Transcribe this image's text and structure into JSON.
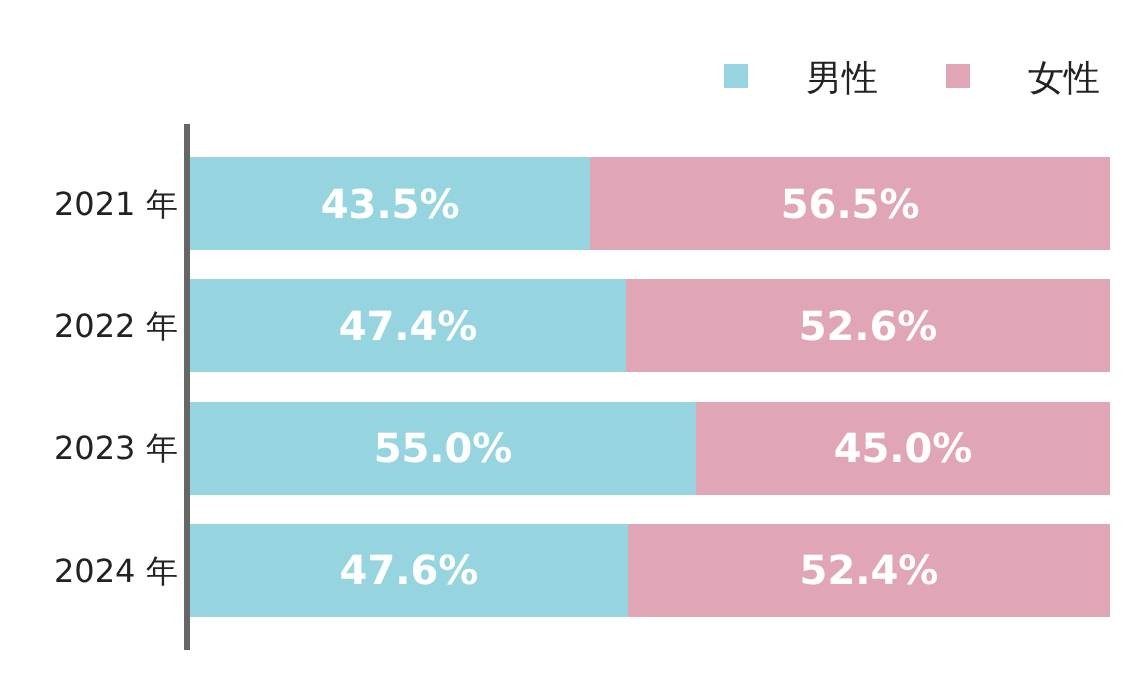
{
  "chart_data": {
    "type": "bar",
    "orientation": "horizontal",
    "stacked": true,
    "legend": "top right",
    "tick_labels": "y",
    "xlim": [
      0,
      100
    ],
    "categories": [
      "2021 年",
      "2022 年",
      "2023 年",
      "2024 年"
    ],
    "series": [
      {
        "name": "男性",
        "color": "#96d5e0",
        "values": [
          43.5,
          47.4,
          55.0,
          47.6
        ],
        "value_labels": [
          "43.5%",
          "47.4%",
          "55.0%",
          "47.6%"
        ]
      },
      {
        "name": "女性",
        "color": "#e0a6b5",
        "values": [
          56.5,
          52.6,
          45.0,
          52.4
        ],
        "value_labels": [
          "56.5%",
          "52.6%",
          "45.0%",
          "52.4%"
        ]
      }
    ]
  }
}
